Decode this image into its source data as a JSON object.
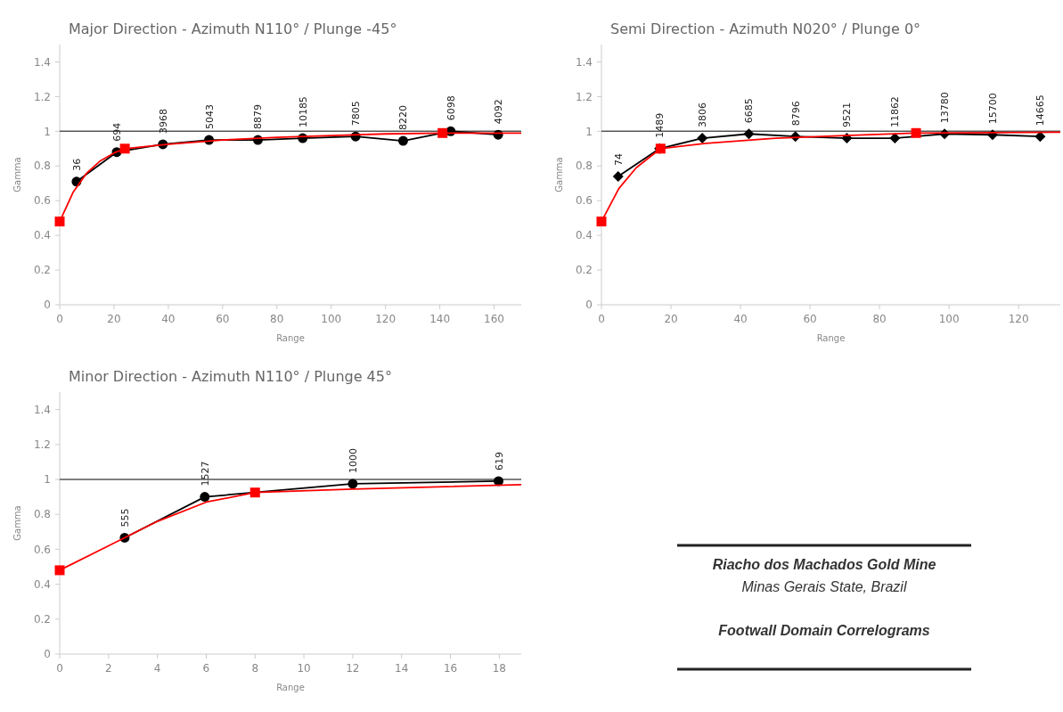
{
  "chart_data": [
    {
      "type": "line",
      "title": "Major Direction - Azimuth N110° / Plunge -45°",
      "xlabel": "Range",
      "ylabel": "Gamma",
      "xlim": [
        0,
        170
      ],
      "xticks": [
        0,
        20,
        40,
        60,
        80,
        100,
        120,
        140,
        160
      ],
      "ylim": [
        0,
        1.5
      ],
      "yticks": [
        0,
        0.2,
        0.4,
        0.6,
        0.8,
        1,
        1.2,
        1.4
      ],
      "ref_lines": [
        {
          "axis": "y",
          "value": 1,
          "color": "#555555"
        }
      ],
      "series": [
        {
          "type": "line",
          "color": "#000000",
          "marker": "circle",
          "x": [
            6.2,
            21,
            38,
            55,
            73,
            89.5,
            109,
            126.5,
            144,
            161.5
          ],
          "values": [
            0.71,
            0.88,
            0.925,
            0.95,
            0.95,
            0.96,
            0.97,
            0.945,
            1.0,
            0.98
          ]
        },
        {
          "type": "line",
          "color": "#ff0000",
          "marker": "none",
          "x": [
            0,
            5,
            10,
            15,
            20,
            24,
            40,
            60,
            80,
            100,
            120,
            141,
            170
          ],
          "values": [
            0.48,
            0.65,
            0.76,
            0.83,
            0.875,
            0.9,
            0.925,
            0.95,
            0.965,
            0.975,
            0.985,
            0.99,
            0.99
          ]
        },
        {
          "type": "scatter",
          "color": "#ff0000",
          "marker": "square",
          "x": [
            0,
            24,
            141
          ],
          "values": [
            0.48,
            0.9,
            0.99
          ]
        }
      ],
      "annotations": [
        {
          "text": "36",
          "x": 6.2,
          "y": 0.71
        },
        {
          "text": "694",
          "x": 21,
          "y": 0.88
        },
        {
          "text": "3968",
          "x": 38,
          "y": 0.925
        },
        {
          "text": "5043",
          "x": 55,
          "y": 0.95
        },
        {
          "text": "8879",
          "x": 73,
          "y": 0.95
        },
        {
          "text": "10185",
          "x": 89.5,
          "y": 0.96
        },
        {
          "text": "7805",
          "x": 109,
          "y": 0.97
        },
        {
          "text": "8220",
          "x": 126.5,
          "y": 0.945
        },
        {
          "text": "6098",
          "x": 144,
          "y": 1.0
        },
        {
          "text": "4092",
          "x": 161.5,
          "y": 0.98
        }
      ]
    },
    {
      "type": "line",
      "title": "Semi Direction - Azimuth N020° / Plunge 0°",
      "xlabel": "Range",
      "ylabel": "Gamma",
      "xlim": [
        0,
        132
      ],
      "xticks": [
        0,
        20,
        40,
        60,
        80,
        100,
        120
      ],
      "ylim": [
        0,
        1.5
      ],
      "yticks": [
        0,
        0.2,
        0.4,
        0.6,
        0.8,
        1,
        1.2,
        1.4
      ],
      "ref_lines": [
        {
          "axis": "y",
          "value": 1,
          "color": "#555555"
        }
      ],
      "series": [
        {
          "type": "line",
          "color": "#000000",
          "marker": "diamond",
          "x": [
            4.8,
            16.7,
            29,
            42.4,
            55.8,
            70.6,
            84.4,
            98.7,
            112.5,
            126.2
          ],
          "values": [
            0.74,
            0.9,
            0.96,
            0.985,
            0.97,
            0.96,
            0.96,
            0.985,
            0.98,
            0.97
          ]
        },
        {
          "type": "line",
          "color": "#ff0000",
          "marker": "none",
          "x": [
            0,
            5,
            10,
            17,
            30,
            50,
            70,
            90.5,
            132
          ],
          "values": [
            0.48,
            0.67,
            0.79,
            0.9,
            0.93,
            0.96,
            0.975,
            0.99,
            0.995
          ]
        },
        {
          "type": "scatter",
          "color": "#ff0000",
          "marker": "square",
          "x": [
            0,
            17,
            90.5
          ],
          "values": [
            0.48,
            0.9,
            0.99
          ]
        }
      ],
      "annotations": [
        {
          "text": "74",
          "x": 4.8,
          "y": 0.74
        },
        {
          "text": "1489",
          "x": 16.7,
          "y": 0.9
        },
        {
          "text": "3806",
          "x": 29,
          "y": 0.96
        },
        {
          "text": "6685",
          "x": 42.4,
          "y": 0.985
        },
        {
          "text": "8796",
          "x": 55.8,
          "y": 0.97
        },
        {
          "text": "9521",
          "x": 70.6,
          "y": 0.96
        },
        {
          "text": "11862",
          "x": 84.4,
          "y": 0.96
        },
        {
          "text": "13780",
          "x": 98.7,
          "y": 0.985
        },
        {
          "text": "15700",
          "x": 112.5,
          "y": 0.98
        },
        {
          "text": "14665",
          "x": 126.2,
          "y": 0.97
        }
      ]
    },
    {
      "type": "line",
      "title": "Minor Direction - Azimuth N110° / Plunge 45°",
      "xlabel": "Range",
      "ylabel": "Gamma",
      "xlim": [
        0,
        18.9
      ],
      "xticks": [
        0,
        2,
        4,
        6,
        8,
        10,
        12,
        14,
        16,
        18
      ],
      "ylim": [
        0,
        1.5
      ],
      "yticks": [
        0,
        0.2,
        0.4,
        0.6,
        0.8,
        1,
        1.2,
        1.4
      ],
      "ref_lines": [
        {
          "axis": "y",
          "value": 1,
          "color": "#555555"
        }
      ],
      "series": [
        {
          "type": "line",
          "color": "#000000",
          "marker": "circle",
          "x": [
            2.66,
            5.94,
            12,
            17.97
          ],
          "values": [
            0.666,
            0.9,
            0.975,
            0.99
          ]
        },
        {
          "type": "line",
          "color": "#ff0000",
          "marker": "none",
          "x": [
            0,
            2,
            4,
            6,
            8,
            12,
            18.9
          ],
          "values": [
            0.48,
            0.62,
            0.76,
            0.87,
            0.925,
            0.945,
            0.97
          ]
        },
        {
          "type": "scatter",
          "color": "#ff0000",
          "marker": "square",
          "x": [
            0,
            8
          ],
          "values": [
            0.48,
            0.925
          ]
        }
      ],
      "annotations": [
        {
          "text": "555",
          "x": 2.66,
          "y": 0.666
        },
        {
          "text": "1527",
          "x": 5.94,
          "y": 0.9
        },
        {
          "text": "1000",
          "x": 12,
          "y": 0.975
        },
        {
          "text": "619",
          "x": 17.97,
          "y": 0.99
        }
      ]
    },
    {
      "type": "other",
      "title": "Riacho dos Machados Gold Mine",
      "subtitle": "Minas Gerais State, Brazil",
      "annotations": [
        "Footwall Domain Correlograms"
      ]
    }
  ]
}
